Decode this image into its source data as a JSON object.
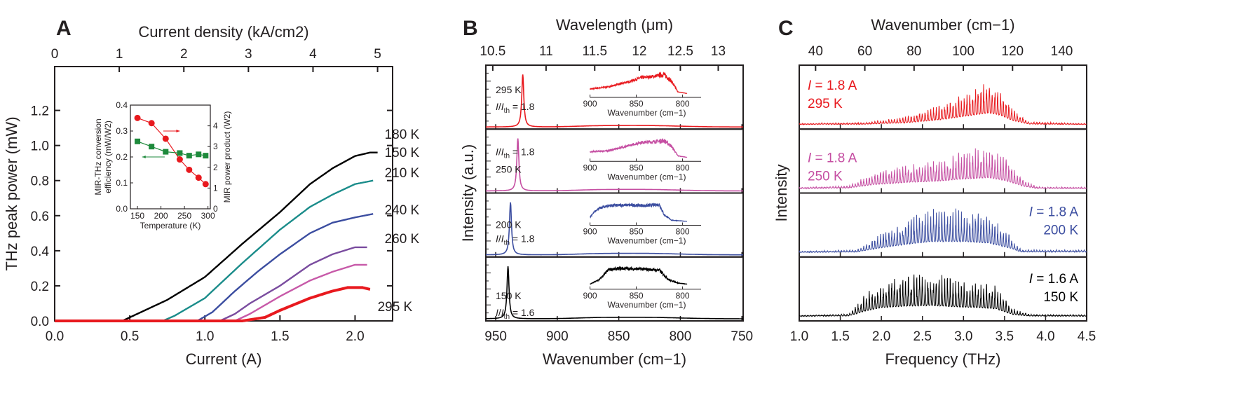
{
  "panel_labels": [
    "A",
    "B",
    "C"
  ],
  "chart_data": [
    {
      "id": "A",
      "type": "line",
      "xlabel": "Current (A)",
      "ylabel": "THz peak power (mW)",
      "top_xlabel": "Current density (kA/cm2)",
      "xlim": [
        0,
        2.25
      ],
      "ylim": [
        0,
        1.45
      ],
      "xticks": [
        "0.0",
        "0.5",
        "1.0",
        "1.5",
        "2.0"
      ],
      "yticks": [
        "0.0",
        "0.2",
        "0.4",
        "0.6",
        "0.8",
        "1.0",
        "1.2"
      ],
      "top_xticks": [
        "0",
        "1",
        "2",
        "3",
        "4",
        "5"
      ],
      "series": [
        {
          "name": "150 K",
          "color": "#000000",
          "points": [
            [
              0,
              0
            ],
            [
              0.45,
              0
            ],
            [
              0.5,
              0.02
            ],
            [
              0.75,
              0.12
            ],
            [
              1.0,
              0.25
            ],
            [
              1.25,
              0.44
            ],
            [
              1.5,
              0.62
            ],
            [
              1.7,
              0.78
            ],
            [
              1.85,
              0.87
            ],
            [
              2.0,
              0.94
            ],
            [
              2.1,
              0.96
            ],
            [
              2.15,
              0.96
            ]
          ]
        },
        {
          "name": "180 K",
          "color": "#1a8c8a",
          "points": [
            [
              0,
              0
            ],
            [
              0.72,
              0
            ],
            [
              0.8,
              0.03
            ],
            [
              1.0,
              0.13
            ],
            [
              1.25,
              0.33
            ],
            [
              1.5,
              0.52
            ],
            [
              1.7,
              0.65
            ],
            [
              1.85,
              0.72
            ],
            [
              2.0,
              0.78
            ],
            [
              2.12,
              0.8
            ]
          ]
        },
        {
          "name": "210 K",
          "color": "#3b4da0",
          "points": [
            [
              0,
              0
            ],
            [
              0.95,
              0
            ],
            [
              1.05,
              0.05
            ],
            [
              1.2,
              0.17
            ],
            [
              1.35,
              0.28
            ],
            [
              1.5,
              0.38
            ],
            [
              1.7,
              0.5
            ],
            [
              1.85,
              0.56
            ],
            [
              2.0,
              0.59
            ],
            [
              2.12,
              0.61
            ]
          ]
        },
        {
          "name": "240 K",
          "color": "#7a4c9f",
          "points": [
            [
              0,
              0
            ],
            [
              1.1,
              0
            ],
            [
              1.2,
              0.04
            ],
            [
              1.3,
              0.1
            ],
            [
              1.5,
              0.2
            ],
            [
              1.7,
              0.32
            ],
            [
              1.85,
              0.38
            ],
            [
              2.0,
              0.42
            ],
            [
              2.08,
              0.42
            ]
          ]
        },
        {
          "name": "260 K",
          "color": "#c759a8",
          "points": [
            [
              0,
              0
            ],
            [
              1.2,
              0
            ],
            [
              1.3,
              0.04
            ],
            [
              1.5,
              0.14
            ],
            [
              1.7,
              0.23
            ],
            [
              1.85,
              0.28
            ],
            [
              2.0,
              0.32
            ],
            [
              2.08,
              0.32
            ]
          ]
        },
        {
          "name": "295 K",
          "color": "#e8191e",
          "points": [
            [
              0,
              0
            ],
            [
              1.25,
              0
            ],
            [
              1.4,
              0.02
            ],
            [
              1.5,
              0.06
            ],
            [
              1.7,
              0.13
            ],
            [
              1.85,
              0.17
            ],
            [
              1.95,
              0.19
            ],
            [
              2.05,
              0.19
            ],
            [
              2.1,
              0.18
            ]
          ]
        }
      ],
      "inset": {
        "type": "scatter-line",
        "xlabel": "Temperature (K)",
        "ylabel_left_1": "MIR-THz conversion",
        "ylabel_left_2": "efficiency (mW/W2)",
        "ylabel_right": "MIR power product (W2)",
        "xlim": [
          135,
          305
        ],
        "ylim_left": [
          0,
          0.4
        ],
        "ylim_right": [
          0,
          5
        ],
        "xticks": [
          "150",
          "200",
          "250",
          "300"
        ],
        "yticks_left": [
          "0.0",
          "0.1",
          "0.2",
          "0.3",
          "0.4"
        ],
        "yticks_right": [
          "0",
          "1",
          "2",
          "3",
          "4"
        ],
        "temperature": [
          150,
          180,
          210,
          240,
          260,
          280,
          295
        ],
        "mir_power_product": {
          "color": "#e8191e",
          "axis": "right",
          "values": [
            4.38,
            4.13,
            3.38,
            2.38,
            1.88,
            1.5,
            1.19
          ]
        },
        "conversion_efficiency": {
          "color": "#1e8a3c",
          "axis": "left",
          "values": [
            0.26,
            0.24,
            0.22,
            0.215,
            0.205,
            0.21,
            0.205
          ]
        }
      }
    },
    {
      "id": "B",
      "type": "line",
      "xlabel": "Wavenumber (cm−1)",
      "ylabel": "Intensity (a.u.)",
      "top_xlabel": "Wavelength (μm)",
      "xlim": [
        958,
        749
      ],
      "xticks": [
        "950",
        "900",
        "850",
        "800",
        "750"
      ],
      "top_xticks": [
        "10.5",
        "11",
        "11.5",
        "12",
        "12.5",
        "13"
      ],
      "inset_xlabel": "Wavenumber (cm−1)",
      "inset_xlim": [
        905,
        780
      ],
      "inset_xticks": [
        "900",
        "850",
        "800"
      ],
      "series": [
        {
          "temperature": "295 K",
          "ratio": "1.8",
          "color": "#e8191e",
          "peak_cm": 928,
          "inset_envelope": [
            [
              900,
              0.25
            ],
            [
              880,
              0.35
            ],
            [
              860,
              0.55
            ],
            [
              845,
              0.75
            ],
            [
              830,
              0.82
            ],
            [
              820,
              0.9
            ],
            [
              812,
              0.6
            ],
            [
              805,
              0.12
            ],
            [
              795,
              0.05
            ]
          ]
        },
        {
          "temperature": "250 K",
          "ratio": "1.8",
          "color": "#c54ea2",
          "peak_cm": 932,
          "inset_envelope": [
            [
              900,
              0.3
            ],
            [
              880,
              0.35
            ],
            [
              860,
              0.55
            ],
            [
              845,
              0.72
            ],
            [
              830,
              0.75
            ],
            [
              820,
              0.8
            ],
            [
              812,
              0.55
            ],
            [
              805,
              0.12
            ],
            [
              795,
              0.05
            ]
          ]
        },
        {
          "temperature": "200 K",
          "ratio": "1.8",
          "color": "#3b4da0",
          "peak_cm": 938,
          "inset_envelope": [
            [
              900,
              0.25
            ],
            [
              892,
              0.6
            ],
            [
              880,
              0.75
            ],
            [
              860,
              0.78
            ],
            [
              840,
              0.75
            ],
            [
              825,
              0.8
            ],
            [
              820,
              0.35
            ],
            [
              812,
              0.1
            ],
            [
              795,
              0.05
            ]
          ]
        },
        {
          "temperature": "150 K",
          "ratio": "1.6",
          "color": "#000000",
          "peak_cm": 940,
          "inset_envelope": [
            [
              900,
              0.1
            ],
            [
              890,
              0.3
            ],
            [
              880,
              0.75
            ],
            [
              865,
              0.8
            ],
            [
              850,
              0.78
            ],
            [
              835,
              0.75
            ],
            [
              825,
              0.72
            ],
            [
              815,
              0.3
            ],
            [
              805,
              0.15
            ],
            [
              795,
              0.1
            ]
          ]
        }
      ]
    },
    {
      "id": "C",
      "type": "line",
      "xlabel": "Frequency (THz)",
      "ylabel": "Intensity",
      "top_xlabel": "Wavenumber (cm−1)",
      "xlim": [
        1.0,
        4.5
      ],
      "xticks": [
        "1.0",
        "1.5",
        "2.0",
        "2.5",
        "3.0",
        "3.5",
        "4.0",
        "4.5"
      ],
      "top_xticks": [
        "40",
        "60",
        "80",
        "100",
        "120",
        "140"
      ],
      "series": [
        {
          "current": "1.8 A",
          "temperature": "295 K",
          "color": "#e8191e",
          "envelope": [
            [
              1.0,
              0.02
            ],
            [
              1.8,
              0.04
            ],
            [
              2.3,
              0.15
            ],
            [
              2.7,
              0.35
            ],
            [
              3.0,
              0.6
            ],
            [
              3.3,
              0.85
            ],
            [
              3.45,
              0.7
            ],
            [
              3.6,
              0.3
            ],
            [
              3.8,
              0.05
            ],
            [
              4.5,
              0.02
            ]
          ]
        },
        {
          "current": "1.8 A",
          "temperature": "250 K",
          "color": "#c54ea2",
          "envelope": [
            [
              1.0,
              0.02
            ],
            [
              1.6,
              0.05
            ],
            [
              1.9,
              0.3
            ],
            [
              2.3,
              0.45
            ],
            [
              2.7,
              0.55
            ],
            [
              3.0,
              0.7
            ],
            [
              3.3,
              0.8
            ],
            [
              3.5,
              0.6
            ],
            [
              3.75,
              0.15
            ],
            [
              3.9,
              0.03
            ],
            [
              4.5,
              0.02
            ]
          ]
        },
        {
          "current": "1.8 A",
          "temperature": "200 K",
          "color": "#3b4da0",
          "envelope": [
            [
              1.0,
              0.02
            ],
            [
              1.7,
              0.05
            ],
            [
              2.0,
              0.35
            ],
            [
              2.3,
              0.6
            ],
            [
              2.6,
              0.8
            ],
            [
              3.0,
              0.8
            ],
            [
              3.3,
              0.7
            ],
            [
              3.55,
              0.35
            ],
            [
              3.7,
              0.05
            ],
            [
              4.5,
              0.05
            ]
          ]
        },
        {
          "current": "1.6 A",
          "temperature": "150 K",
          "color": "#000000",
          "envelope": [
            [
              1.0,
              0.02
            ],
            [
              1.6,
              0.05
            ],
            [
              1.8,
              0.4
            ],
            [
              2.0,
              0.65
            ],
            [
              2.3,
              0.75
            ],
            [
              2.6,
              0.8
            ],
            [
              2.9,
              0.7
            ],
            [
              3.2,
              0.65
            ],
            [
              3.4,
              0.55
            ],
            [
              3.6,
              0.15
            ],
            [
              3.8,
              0.04
            ],
            [
              4.5,
              0.03
            ]
          ]
        }
      ]
    }
  ]
}
